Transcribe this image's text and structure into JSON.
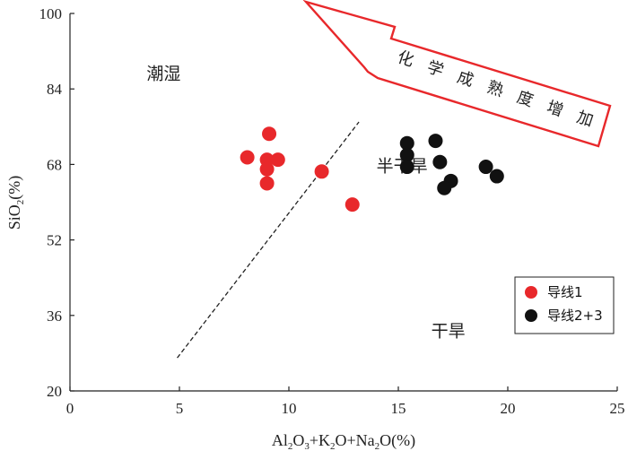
{
  "chart_data": {
    "type": "scatter",
    "xlabel": "Al2O3+K2O+Na2O(%)",
    "ylabel": "SiO2(%)",
    "xlim": [
      0,
      25
    ],
    "ylim": [
      20,
      100
    ],
    "xticks": [
      "0",
      "5",
      "10",
      "15",
      "20",
      "25"
    ],
    "yticks": [
      "20",
      "36",
      "52",
      "68",
      "84",
      "100"
    ],
    "grid": false,
    "legend_position": "lower-right",
    "series": [
      {
        "name": "导线1",
        "color": "#e8282b",
        "points": [
          {
            "x": 9.1,
            "y": 74.5
          },
          {
            "x": 8.1,
            "y": 69.5
          },
          {
            "x": 9.0,
            "y": 69.0
          },
          {
            "x": 9.5,
            "y": 69.0
          },
          {
            "x": 9.0,
            "y": 67.0
          },
          {
            "x": 9.0,
            "y": 64.0
          },
          {
            "x": 11.5,
            "y": 66.5
          },
          {
            "x": 12.9,
            "y": 59.5
          }
        ]
      },
      {
        "name": "导线2+3",
        "color": "#111111",
        "points": [
          {
            "x": 15.4,
            "y": 72.5
          },
          {
            "x": 16.7,
            "y": 73.0
          },
          {
            "x": 15.4,
            "y": 70.0
          },
          {
            "x": 15.4,
            "y": 67.5
          },
          {
            "x": 16.9,
            "y": 68.5
          },
          {
            "x": 19.0,
            "y": 67.5
          },
          {
            "x": 19.5,
            "y": 65.5
          },
          {
            "x": 17.4,
            "y": 64.5
          },
          {
            "x": 17.1,
            "y": 63.0
          }
        ]
      }
    ],
    "boundary_line": {
      "x1": 4.9,
      "y1": 27.0,
      "x2": 13.2,
      "y2": 77.0,
      "style": "dashed"
    },
    "region_labels": [
      {
        "text": "潮湿",
        "x": 3.5,
        "y": 86.0
      },
      {
        "text": "半干旱",
        "x": 14.0,
        "y": 66.5
      },
      {
        "text": "干旱",
        "x": 16.5,
        "y": 31.5
      }
    ],
    "arrow_annotation": {
      "text": "化学成熟度增加",
      "direction": "upper-left"
    }
  }
}
